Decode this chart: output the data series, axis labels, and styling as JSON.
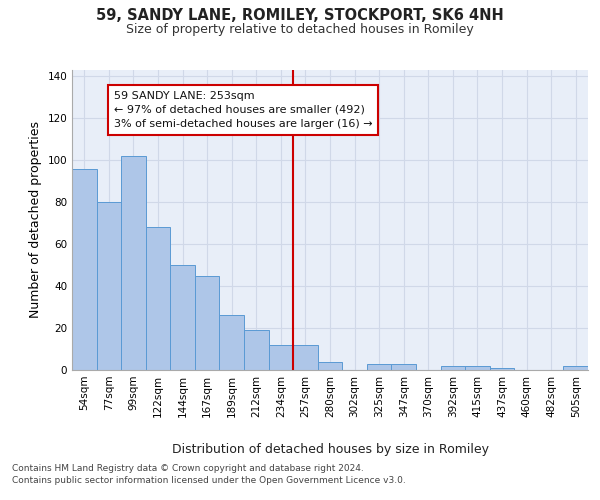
{
  "title1": "59, SANDY LANE, ROMILEY, STOCKPORT, SK6 4NH",
  "title2": "Size of property relative to detached houses in Romiley",
  "xlabel": "Distribution of detached houses by size in Romiley",
  "ylabel": "Number of detached properties",
  "bar_labels": [
    "54sqm",
    "77sqm",
    "99sqm",
    "122sqm",
    "144sqm",
    "167sqm",
    "189sqm",
    "212sqm",
    "234sqm",
    "257sqm",
    "280sqm",
    "302sqm",
    "325sqm",
    "347sqm",
    "370sqm",
    "392sqm",
    "415sqm",
    "437sqm",
    "460sqm",
    "482sqm",
    "505sqm"
  ],
  "bar_values": [
    96,
    80,
    102,
    68,
    50,
    45,
    26,
    19,
    12,
    12,
    4,
    0,
    3,
    3,
    0,
    2,
    2,
    1,
    0,
    0,
    2
  ],
  "bar_color": "#aec6e8",
  "bar_edge_color": "#5a9ad4",
  "vline_x": 8.5,
  "vline_color": "#cc0000",
  "annotation_text": "59 SANDY LANE: 253sqm\n← 97% of detached houses are smaller (492)\n3% of semi-detached houses are larger (16) →",
  "annotation_box_color": "#cc0000",
  "ylim": [
    0,
    143
  ],
  "yticks": [
    0,
    20,
    40,
    60,
    80,
    100,
    120,
    140
  ],
  "grid_color": "#d0d8e8",
  "bg_color": "#e8eef8",
  "footer_line1": "Contains HM Land Registry data © Crown copyright and database right 2024.",
  "footer_line2": "Contains public sector information licensed under the Open Government Licence v3.0.",
  "title_fontsize": 10.5,
  "subtitle_fontsize": 9,
  "ylabel_fontsize": 9,
  "xlabel_fontsize": 9,
  "tick_fontsize": 7.5,
  "annot_fontsize": 8
}
